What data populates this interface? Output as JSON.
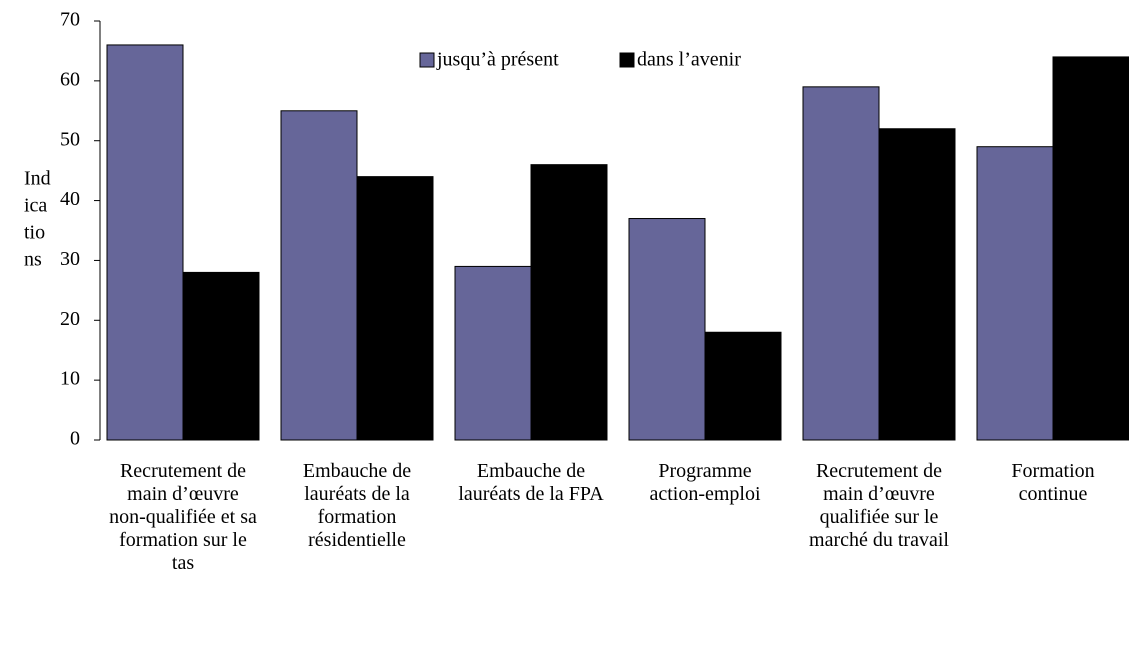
{
  "chart_data": {
    "type": "bar",
    "ylabel": [
      "Ind",
      "ica",
      "tio",
      "ns"
    ],
    "categories": [
      "Recrutement de main d’œuvre non-qualifiée et sa formation sur le tas",
      "Embauche de lauréats de la formation résidentielle",
      "Embauche de lauréats de la FPA",
      "Programme action-emploi",
      "Recrutement de main d’œuvre qua­lifiée sur le marché du travail",
      "Formation continue"
    ],
    "series": [
      {
        "name": "jusqu’à présent",
        "color": "#666699",
        "values": [
          66,
          55,
          29,
          37,
          59,
          49
        ]
      },
      {
        "name": "dans l’avenir",
        "color": "#000000",
        "values": [
          28,
          44,
          46,
          18,
          52,
          64
        ]
      }
    ],
    "ylim": [
      0,
      70
    ],
    "yticks": [
      0,
      10,
      20,
      30,
      40,
      50,
      60,
      70
    ],
    "grid": false,
    "legend": "top"
  }
}
